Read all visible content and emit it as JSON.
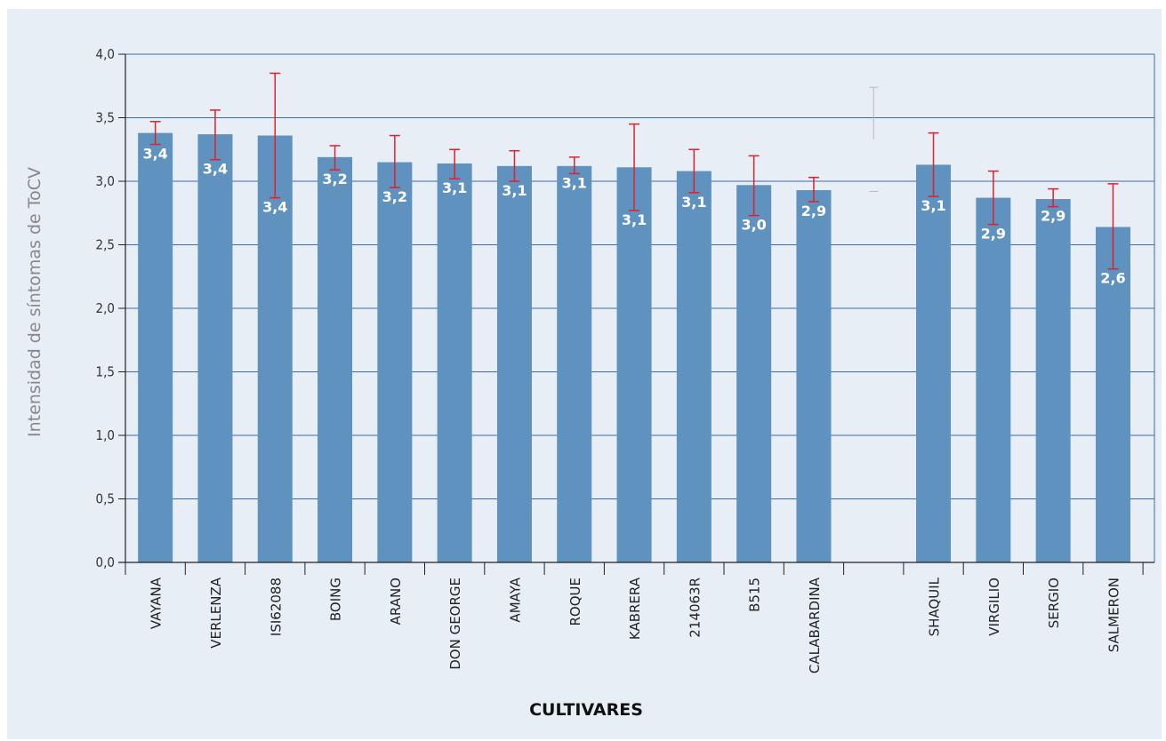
{
  "chart_data": {
    "type": "bar",
    "title": "",
    "xlabel": "CULTIVARES",
    "ylabel": "Intensidad de síntomas de ToCV",
    "ylim": [
      0,
      4.0
    ],
    "yticks": [
      "0,0",
      "0,5",
      "1,0",
      "1,5",
      "2,0",
      "2,5",
      "3,0",
      "3,5",
      "4,0"
    ],
    "grid": "horizontal",
    "categories": [
      "VAYANA",
      "VERLENZA",
      "ISI62088",
      "BOING",
      "ARANO",
      "DON GEORGE",
      "AMAYA",
      "ROQUE",
      "KABRERA",
      "214063R",
      "B515",
      "CALABARDINA",
      "",
      "SHAQUIL",
      "VIRGILIO",
      "SERGIO",
      "SALMERON"
    ],
    "values": [
      3.38,
      3.37,
      3.36,
      3.19,
      3.15,
      3.14,
      3.12,
      3.12,
      3.11,
      3.08,
      2.97,
      2.93,
      null,
      3.13,
      2.87,
      2.86,
      2.64
    ],
    "error_low": [
      3.29,
      3.17,
      2.87,
      3.09,
      2.95,
      3.02,
      3.0,
      3.06,
      2.77,
      2.91,
      2.73,
      2.84,
      null,
      2.88,
      2.66,
      2.8,
      2.31
    ],
    "error_high": [
      3.47,
      3.56,
      3.85,
      3.28,
      3.36,
      3.25,
      3.24,
      3.19,
      3.45,
      3.25,
      3.2,
      3.03,
      null,
      3.38,
      3.08,
      2.94,
      2.98
    ],
    "data_labels": [
      "3,4",
      "3,4",
      "3,4",
      "3,2",
      "3,2",
      "3,1",
      "3,1",
      "3,1",
      "3,1",
      "3,1",
      "3,0",
      "2,9",
      "",
      "3,1",
      "2,9",
      "2,9",
      "2,6"
    ],
    "bar_color": "#5f92be",
    "errorbar_color": "#e0202a",
    "grid_color": "#3d6aa8",
    "background": "#e8eef6"
  }
}
